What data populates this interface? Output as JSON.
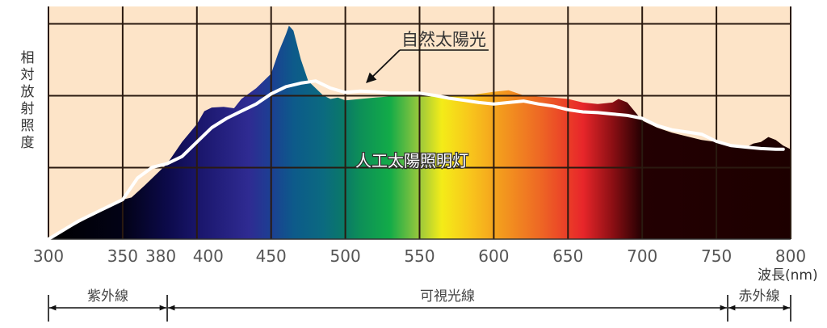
{
  "chart_data": {
    "type": "area",
    "title": "",
    "xlabel": "波長(nm)",
    "ylabel": "相対放射照度",
    "xlim": [
      300,
      800
    ],
    "ylim": [
      0,
      3.2
    ],
    "grid": true,
    "x_ticks": [
      300,
      350,
      380,
      400,
      450,
      500,
      550,
      600,
      650,
      700,
      750,
      800
    ],
    "series": [
      {
        "name": "人工太陽照明灯",
        "style": "spectrum-filled-area",
        "x": [
          300,
          320,
          340,
          350,
          356,
          365,
          380,
          390,
          400,
          405,
          410,
          418,
          425,
          430,
          440,
          450,
          455,
          460,
          462,
          465,
          470,
          475,
          480,
          485,
          490,
          495,
          500,
          520,
          540,
          560,
          580,
          590,
          600,
          610,
          620,
          630,
          640,
          650,
          660,
          670,
          680,
          684,
          690,
          700,
          710,
          720,
          730,
          740,
          750,
          760,
          770,
          775,
          780,
          785,
          790,
          795,
          800
        ],
        "values": [
          0.0,
          0.22,
          0.45,
          0.55,
          0.58,
          0.75,
          1.05,
          1.35,
          1.6,
          1.78,
          1.83,
          1.84,
          1.82,
          1.95,
          2.1,
          2.3,
          2.6,
          2.85,
          2.97,
          2.9,
          2.5,
          2.2,
          2.1,
          2.0,
          1.95,
          1.97,
          1.93,
          1.97,
          2.0,
          2.0,
          1.98,
          2.02,
          2.05,
          2.07,
          2.0,
          1.98,
          1.97,
          1.95,
          1.9,
          1.88,
          1.9,
          1.95,
          1.9,
          1.65,
          1.55,
          1.48,
          1.43,
          1.38,
          1.35,
          1.3,
          1.28,
          1.33,
          1.35,
          1.42,
          1.38,
          1.3,
          1.25
        ],
        "visible_band_colors": {
          "uv": "#000000",
          "violet": "#1a1466",
          "blue": "#2e2b8f",
          "cyan_blue": "#0f5e8c",
          "teal": "#0a7a63",
          "green": "#13a84a",
          "yellow": "#f7ec13",
          "orange": "#f39a1e",
          "red": "#e8252a",
          "ir": "#1f0000"
        }
      },
      {
        "name": "自然太陽光",
        "style": "white-line",
        "x": [
          300,
          320,
          340,
          350,
          360,
          370,
          380,
          390,
          400,
          410,
          420,
          430,
          440,
          450,
          460,
          470,
          480,
          490,
          500,
          510,
          520,
          530,
          540,
          550,
          560,
          570,
          580,
          590,
          600,
          610,
          620,
          630,
          640,
          650,
          660,
          670,
          680,
          690,
          700,
          710,
          720,
          730,
          740,
          750,
          760,
          770,
          780,
          790,
          795
        ],
        "values": [
          0.0,
          0.25,
          0.45,
          0.55,
          0.85,
          1.0,
          1.05,
          1.15,
          1.35,
          1.55,
          1.68,
          1.78,
          1.88,
          2.02,
          2.12,
          2.17,
          2.2,
          2.1,
          2.04,
          2.06,
          2.05,
          2.03,
          2.03,
          2.03,
          2.0,
          1.96,
          1.93,
          1.9,
          1.88,
          1.9,
          1.92,
          1.88,
          1.85,
          1.8,
          1.77,
          1.76,
          1.74,
          1.72,
          1.68,
          1.58,
          1.52,
          1.49,
          1.46,
          1.36,
          1.3,
          1.28,
          1.26,
          1.25,
          1.25
        ]
      }
    ],
    "annotations": [
      {
        "text": "自然太陽光",
        "target_x": 510,
        "target_y": 2.05,
        "type": "arrow-label"
      },
      {
        "text": "人工太陽照明灯",
        "x": 525,
        "y": 1.1,
        "type": "outlined-label"
      }
    ],
    "ranges": [
      {
        "label": "紫外線",
        "from": 300,
        "to": 380
      },
      {
        "label": "可視光線",
        "from": 380,
        "to": 760
      },
      {
        "label": "赤外線",
        "from": 760,
        "to": 800
      }
    ],
    "colors": {
      "plot_background": "#fde4c8",
      "grid": "#2a1a10",
      "sunlight_line": "#ffffff",
      "text": "#444444"
    }
  },
  "labels": {
    "ylabel": "相対放射照度",
    "xunit": "波長(nm)"
  }
}
